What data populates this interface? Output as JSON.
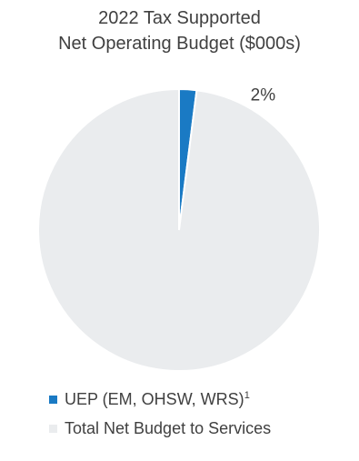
{
  "chart_data": {
    "type": "pie",
    "title_line1": "2022 Tax Supported",
    "title_line2": "Net Operating Budget ($000s)",
    "slices": [
      {
        "label": "UEP (EM, OHSW, WRS)",
        "superscript": "1",
        "value": 2,
        "color": "#1a7ac4",
        "data_label": "2%"
      },
      {
        "label": "Total Net Budget to Services",
        "superscript": "",
        "value": 98,
        "color": "#eaecee",
        "data_label": ""
      }
    ],
    "legend_position": "bottom"
  }
}
